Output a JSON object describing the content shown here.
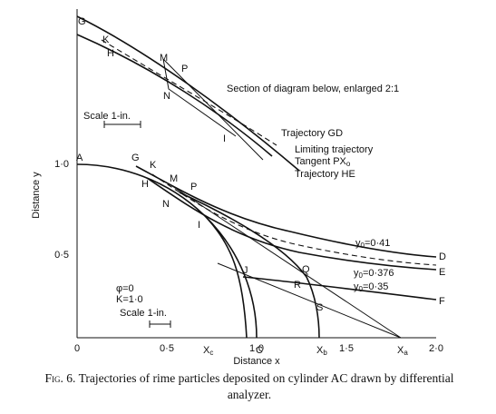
{
  "figure": {
    "axes": {
      "x_label": "Distance x",
      "y_label": "Distance y",
      "x_ticks": [
        "0",
        "0·5",
        "1·0",
        "1·5",
        "2·0"
      ],
      "y_ticks": [
        "0·5",
        "1·0"
      ]
    },
    "inset": {
      "title": "Section of diagram below, enlarged 2:1",
      "scale": "Scale  1-in.",
      "points": [
        "G",
        "K",
        "H",
        "M",
        "P",
        "N",
        "I"
      ],
      "labels": {
        "trajectory_gd": "Trajectory GD",
        "limiting": "Limiting trajectory",
        "tangent": {
          "text": "Tangent PX",
          "sub": "o"
        },
        "trajectory_he": "Trajectory HE"
      }
    },
    "main": {
      "points": [
        "A",
        "G",
        "K",
        "H",
        "M",
        "P",
        "N",
        "I",
        "J",
        "Q",
        "R",
        "S",
        "C",
        "D",
        "E",
        "F"
      ],
      "x_marks": [
        {
          "text": "X",
          "sub": "c"
        },
        {
          "text": "X",
          "sub": "b"
        },
        {
          "text": "X",
          "sub": "a"
        }
      ],
      "y0_labels": [
        {
          "text": "y",
          "sub": "0",
          "value": "=0·41"
        },
        {
          "text": "y",
          "sub": "0",
          "value": "=0·376"
        },
        {
          "text": "y",
          "sub": "0",
          "value": "=0·35"
        }
      ],
      "params": [
        "φ=0",
        "K=1·0"
      ],
      "scale": "Scale  1-in."
    },
    "caption": {
      "label": "Fig. 6.",
      "text": "Trajectories of rime particles deposited on cylinder AC drawn by differential analyzer."
    }
  }
}
